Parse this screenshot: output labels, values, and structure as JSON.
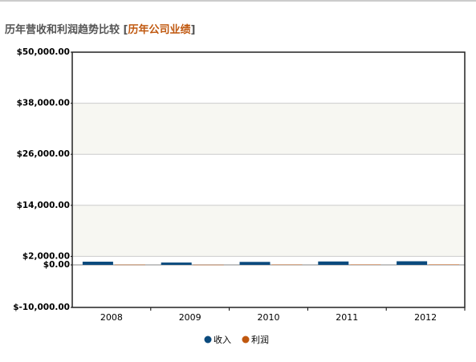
{
  "chart_data": {
    "type": "bar",
    "title": "历年营收和利润趋势比较",
    "title_open": "[",
    "title_link": "历年公司业绩",
    "title_close": "]",
    "categories": [
      "2008",
      "2009",
      "2010",
      "2011",
      "2012"
    ],
    "series": [
      {
        "name": "收入",
        "color": "#0b4a7d",
        "values": [
          750,
          550,
          700,
          800,
          850
        ]
      },
      {
        "name": "利润",
        "color": "#c0580f",
        "values": [
          60,
          40,
          80,
          90,
          100
        ]
      }
    ],
    "ylim": [
      -10000,
      50000
    ],
    "yticks": [
      {
        "value": -10000,
        "label": "$-10,000.00"
      },
      {
        "value": 0,
        "label": "$0.00"
      },
      {
        "value": 2000,
        "label": "$2,000.00"
      },
      {
        "value": 14000,
        "label": "$14,000.00"
      },
      {
        "value": 26000,
        "label": "$26,000.00"
      },
      {
        "value": 38000,
        "label": "$38,000.00"
      },
      {
        "value": 50000,
        "label": "$50,000.00"
      }
    ],
    "grid": true
  }
}
